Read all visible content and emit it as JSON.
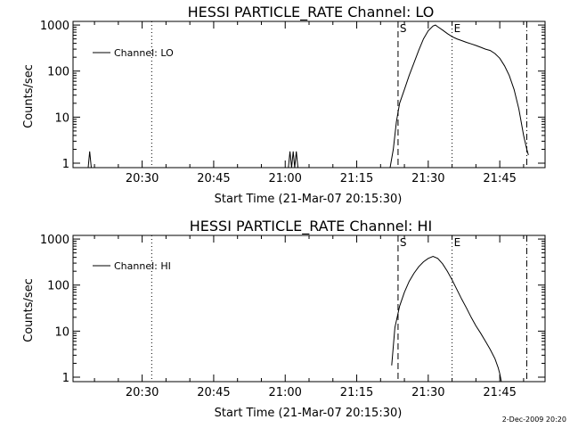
{
  "footer_stamp": "2-Dec-2009 20:20",
  "chart_data": [
    {
      "type": "line",
      "title": "HESSI PARTICLE_RATE Channel: LO",
      "xlabel": "Start Time (21-Mar-07 20:15:30)",
      "ylabel": "Counts/sec",
      "yscale": "log",
      "ylim": [
        0.8,
        1200
      ],
      "xlim": [
        "20:15:30",
        "21:54:30"
      ],
      "x_ticks": [
        "20:30",
        "20:45",
        "21:00",
        "21:15",
        "21:30",
        "21:45"
      ],
      "y_ticks": [
        "1",
        "10",
        "100",
        "1000"
      ],
      "legend": "top-left",
      "markers": [
        {
          "style": "dotted",
          "x": "20:32:00"
        },
        {
          "style": "dashed",
          "x": "21:23:40",
          "label": "S"
        },
        {
          "style": "dotted",
          "x": "21:35:00",
          "label": "E"
        },
        {
          "style": "dashdot",
          "x": "21:50:40"
        }
      ],
      "series": [
        {
          "name": "Channel: LO",
          "points": [
            [
              "20:18:40",
              0.8
            ],
            [
              "20:19:00",
              1.8
            ],
            [
              "20:19:20",
              0.8
            ],
            [
              "21:00:40",
              0.8
            ],
            [
              "21:01:00",
              1.8
            ],
            [
              "21:01:20",
              0.8
            ],
            [
              "21:01:40",
              1.8
            ],
            [
              "21:02:00",
              0.8
            ],
            [
              "21:02:20",
              1.8
            ],
            [
              "21:02:40",
              0.8
            ],
            [
              "21:22:00",
              0.8
            ],
            [
              "21:22:40",
              2
            ],
            [
              "21:23:20",
              8
            ],
            [
              "21:24:00",
              20
            ],
            [
              "21:25:00",
              40
            ],
            [
              "21:26:00",
              80
            ],
            [
              "21:27:00",
              150
            ],
            [
              "21:28:00",
              280
            ],
            [
              "21:29:00",
              500
            ],
            [
              "21:30:00",
              750
            ],
            [
              "21:31:00",
              950
            ],
            [
              "21:31:30",
              1000
            ],
            [
              "21:32:00",
              920
            ],
            [
              "21:33:00",
              780
            ],
            [
              "21:34:00",
              650
            ],
            [
              "21:35:00",
              560
            ],
            [
              "21:36:00",
              500
            ],
            [
              "21:37:00",
              460
            ],
            [
              "21:38:00",
              420
            ],
            [
              "21:39:00",
              390
            ],
            [
              "21:40:00",
              360
            ],
            [
              "21:41:00",
              330
            ],
            [
              "21:42:00",
              300
            ],
            [
              "21:43:00",
              280
            ],
            [
              "21:44:00",
              240
            ],
            [
              "21:45:00",
              190
            ],
            [
              "21:46:00",
              130
            ],
            [
              "21:47:00",
              80
            ],
            [
              "21:48:00",
              40
            ],
            [
              "21:49:00",
              15
            ],
            [
              "21:50:00",
              4
            ],
            [
              "21:50:40",
              2
            ],
            [
              "21:51:00",
              1.5
            ]
          ]
        }
      ]
    },
    {
      "type": "line",
      "title": "HESSI PARTICLE_RATE Channel: HI",
      "xlabel": "Start Time (21-Mar-07 20:15:30)",
      "ylabel": "Counts/sec",
      "yscale": "log",
      "ylim": [
        0.8,
        1200
      ],
      "xlim": [
        "20:15:30",
        "21:54:30"
      ],
      "x_ticks": [
        "20:30",
        "20:45",
        "21:00",
        "21:15",
        "21:30",
        "21:45"
      ],
      "y_ticks": [
        "1",
        "10",
        "100",
        "1000"
      ],
      "legend": "top-left",
      "markers": [
        {
          "style": "dotted",
          "x": "20:32:00"
        },
        {
          "style": "dashed",
          "x": "21:23:40",
          "label": "S"
        },
        {
          "style": "dotted",
          "x": "21:35:00",
          "label": "E"
        },
        {
          "style": "dashdot",
          "x": "21:50:40"
        }
      ],
      "series": [
        {
          "name": "Channel: HI",
          "points": [
            [
              "21:22:20",
              1.8
            ],
            [
              "21:23:00",
              12
            ],
            [
              "21:24:00",
              35
            ],
            [
              "21:25:00",
              70
            ],
            [
              "21:26:00",
              120
            ],
            [
              "21:27:00",
              180
            ],
            [
              "21:28:00",
              250
            ],
            [
              "21:29:00",
              320
            ],
            [
              "21:30:00",
              380
            ],
            [
              "21:31:00",
              420
            ],
            [
              "21:32:00",
              380
            ],
            [
              "21:33:00",
              290
            ],
            [
              "21:34:00",
              200
            ],
            [
              "21:35:00",
              130
            ],
            [
              "21:36:00",
              80
            ],
            [
              "21:37:00",
              50
            ],
            [
              "21:38:00",
              32
            ],
            [
              "21:39:00",
              20
            ],
            [
              "21:40:00",
              13
            ],
            [
              "21:41:00",
              9
            ],
            [
              "21:42:00",
              6
            ],
            [
              "21:43:00",
              4
            ],
            [
              "21:44:00",
              2.5
            ],
            [
              "21:44:40",
              1.6
            ],
            [
              "21:45:00",
              1.2
            ],
            [
              "21:45:20",
              0.8
            ]
          ]
        }
      ]
    }
  ]
}
